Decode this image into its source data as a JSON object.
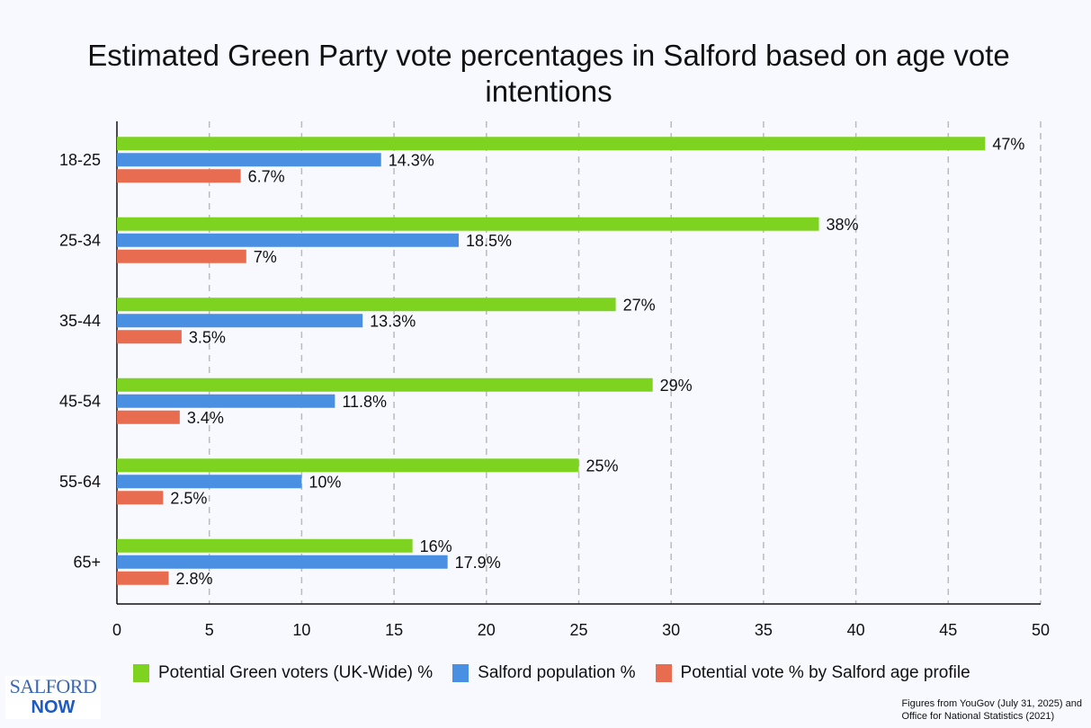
{
  "chart_data": {
    "type": "bar",
    "orientation": "horizontal",
    "title": "Estimated Green Party vote percentages in Salford based on age vote intentions",
    "categories": [
      "18-25",
      "25-34",
      "35-44",
      "45-54",
      "55-64",
      "65+"
    ],
    "series": [
      {
        "name": "Potential Green voters (UK-Wide) %",
        "color": "#7ed321",
        "values": [
          47,
          38,
          27,
          29,
          25,
          16
        ],
        "labels": [
          "47%",
          "38%",
          "27%",
          "29%",
          "25%",
          "16%"
        ]
      },
      {
        "name": "Salford population %",
        "color": "#4a90e2",
        "values": [
          14.3,
          18.5,
          13.3,
          11.8,
          10,
          17.9
        ],
        "labels": [
          "14.3%",
          "18.5%",
          "13.3%",
          "11.8%",
          "10%",
          "17.9%"
        ]
      },
      {
        "name": "Potential vote % by Salford age profile",
        "color": "#e86c4f",
        "values": [
          6.7,
          7,
          3.5,
          3.4,
          2.5,
          2.8
        ],
        "labels": [
          "6.7%",
          "7%",
          "3.5%",
          "3.4%",
          "2.5%",
          "2.8%"
        ]
      }
    ],
    "xlim": [
      0,
      50
    ],
    "xticks": [
      "0",
      "5",
      "10",
      "15",
      "20",
      "25",
      "30",
      "35",
      "40",
      "45",
      "50"
    ],
    "grid": "vertical dashed",
    "legend": "bottom"
  },
  "logo": {
    "line1": "SALFORD",
    "line2": "NOW"
  },
  "source": [
    "Figures from YouGov (July 31, 2025) and",
    "Office for National Statistics (2021)"
  ]
}
